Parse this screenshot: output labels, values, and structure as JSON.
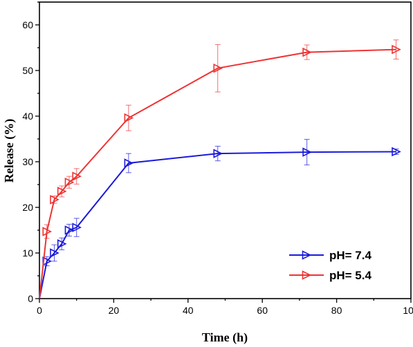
{
  "chart_data": {
    "type": "line",
    "title": "",
    "xlabel": "Time (h)",
    "ylabel": "Release (%)",
    "xlim": [
      0,
      100
    ],
    "ylim": [
      0,
      65
    ],
    "xticks": [
      0,
      20,
      40,
      60,
      80,
      100
    ],
    "yticks": [
      0,
      10,
      20,
      30,
      40,
      50,
      60
    ],
    "grid": false,
    "legend_position": "bottom-right",
    "series": [
      {
        "name": "pH= 7.4",
        "color": "#1a1adb",
        "marker": "right-triangle",
        "x": [
          0,
          2,
          4,
          6,
          8,
          10,
          24,
          48,
          72,
          96
        ],
        "y": [
          0,
          8.2,
          10.0,
          12.0,
          15.0,
          15.6,
          29.7,
          31.8,
          32.1,
          32.2
        ],
        "error": [
          0,
          1.0,
          1.8,
          1.3,
          1.3,
          2.0,
          2.1,
          1.6,
          2.8,
          0.6
        ]
      },
      {
        "name": "pH= 5.4",
        "color": "#ee3333",
        "marker": "right-triangle",
        "x": [
          0,
          2,
          4,
          6,
          8,
          10,
          24,
          48,
          72,
          96
        ],
        "y": [
          0,
          14.7,
          21.7,
          23.5,
          25.5,
          26.8,
          39.6,
          50.5,
          54.0,
          54.6
        ],
        "error": [
          0,
          1.5,
          0.8,
          1.2,
          1.3,
          1.7,
          2.8,
          5.2,
          1.6,
          2.1
        ]
      }
    ]
  }
}
